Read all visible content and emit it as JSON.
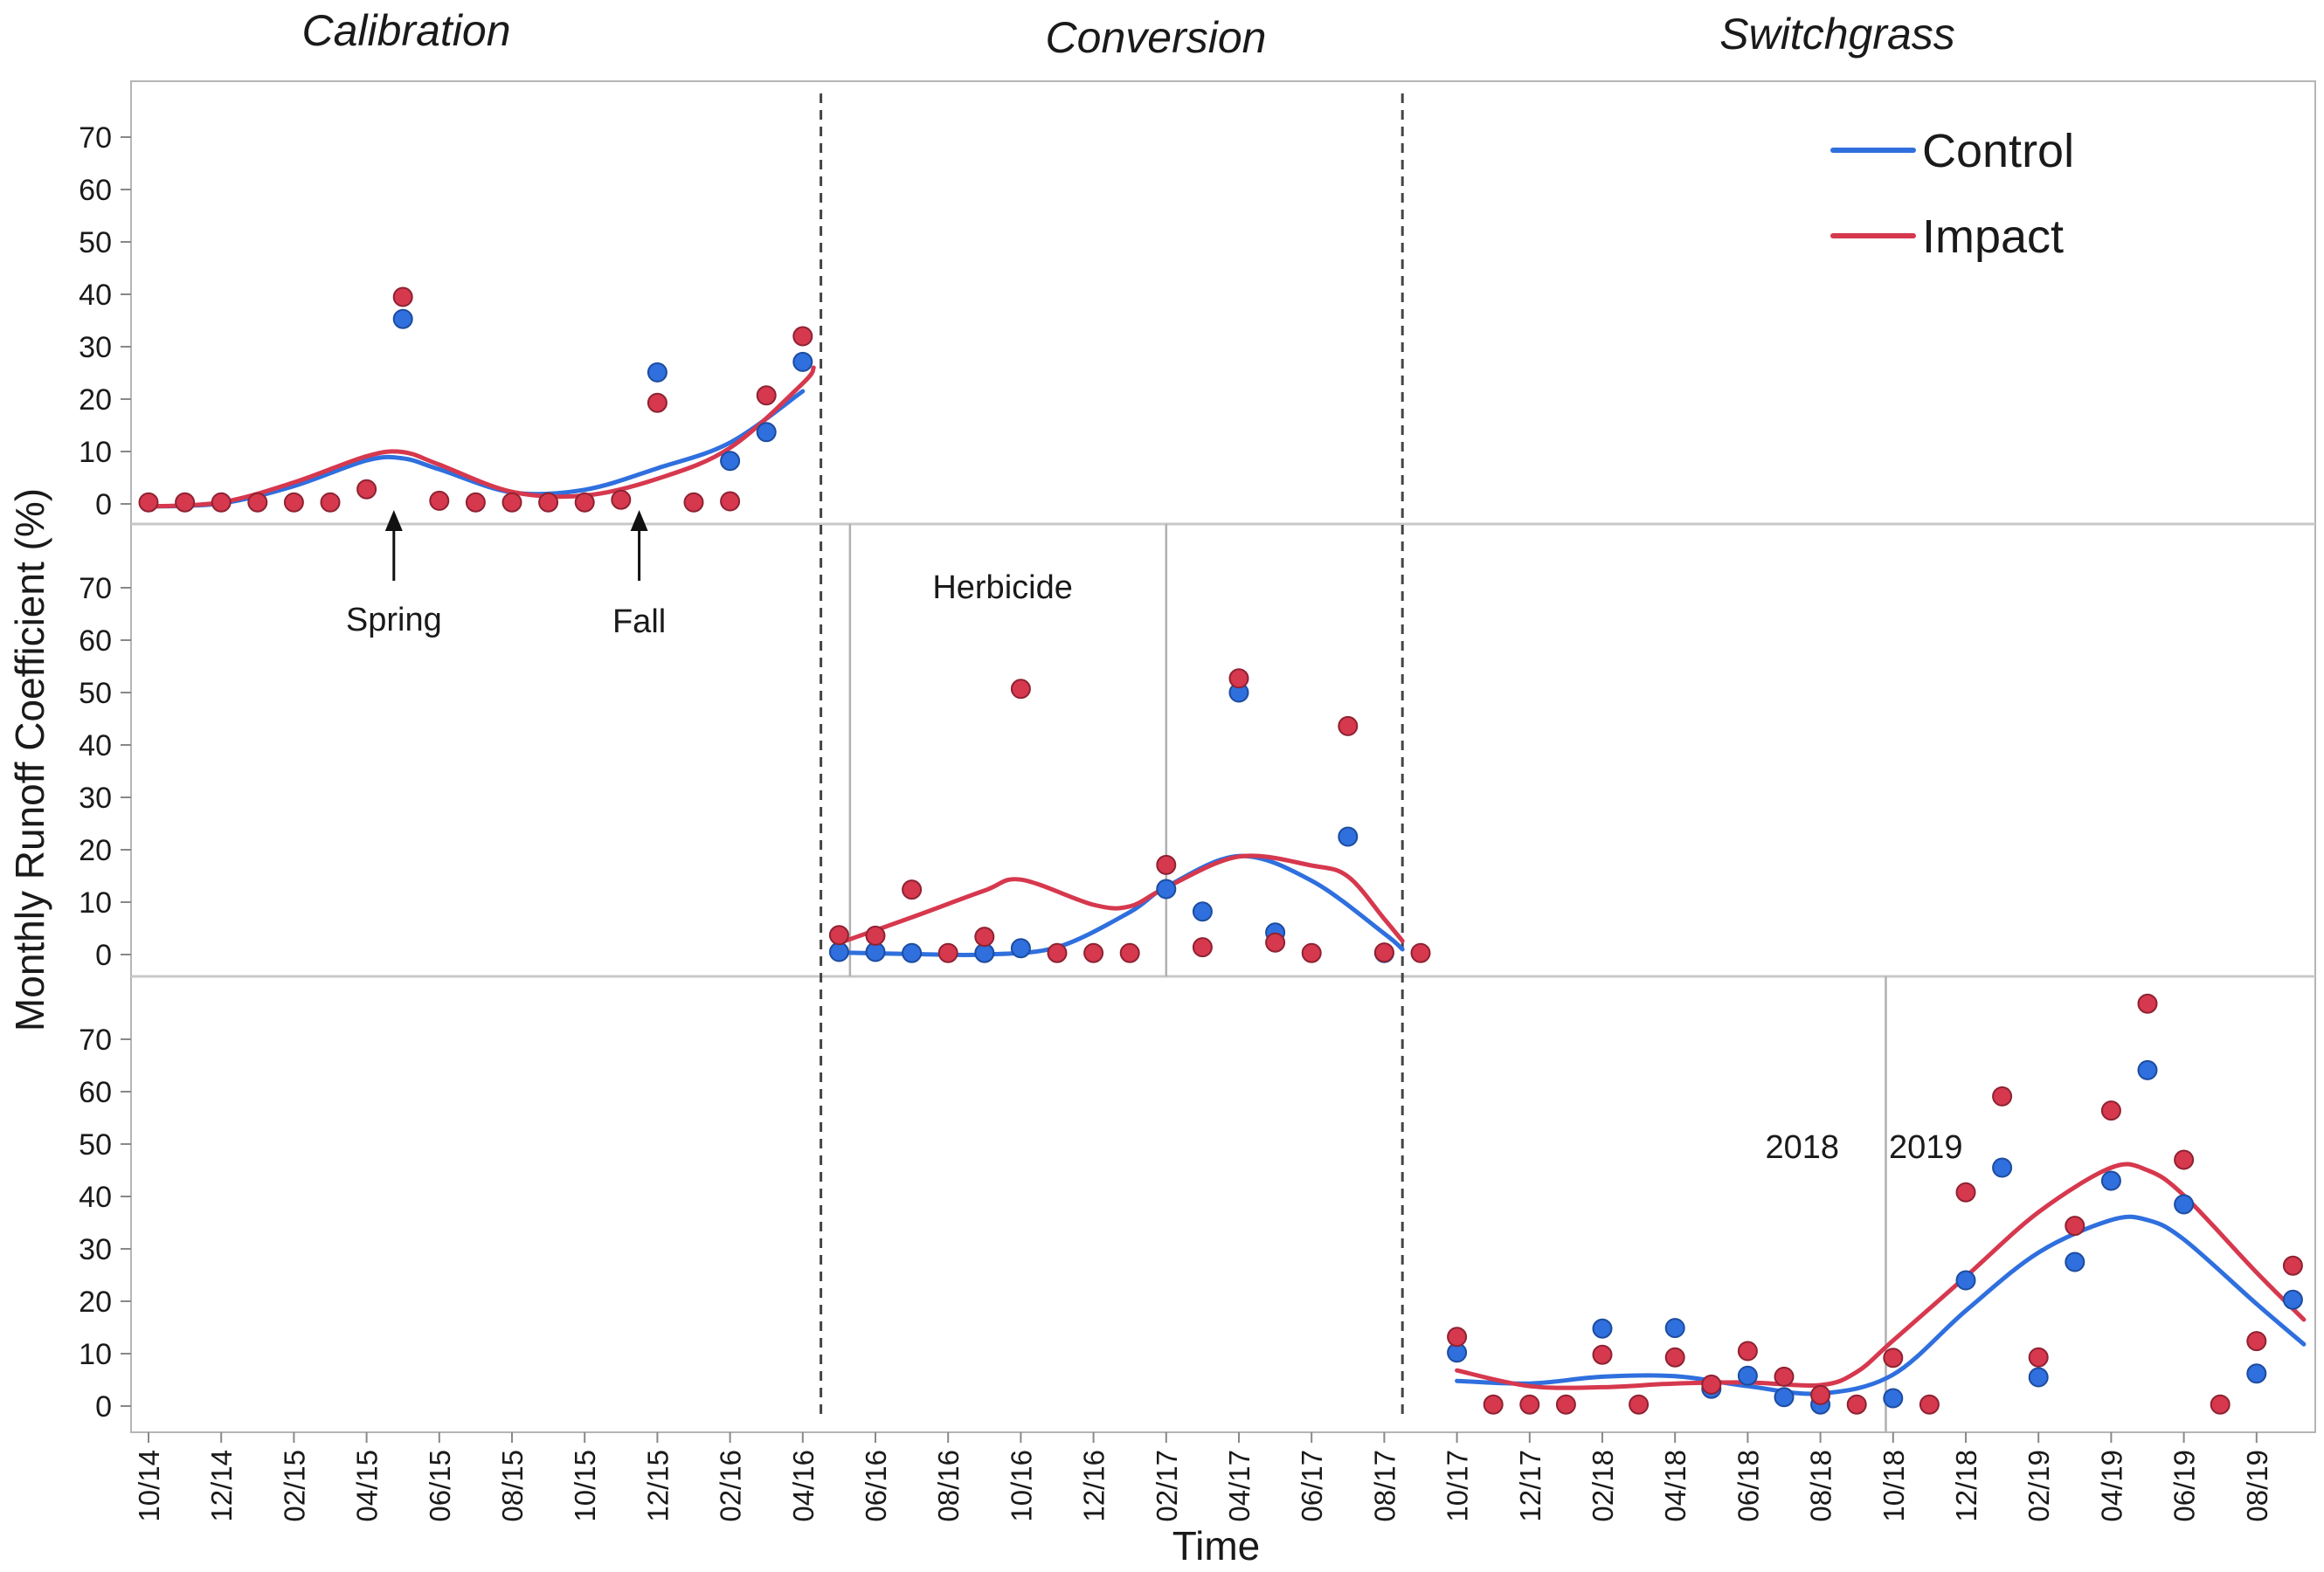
{
  "chart_data": {
    "type": "scatter",
    "title": "",
    "xlabel": "Time",
    "ylabel": "Monthly Runoff Coefficient (%)",
    "ylim": [
      0,
      75
    ],
    "y_ticks": [
      "0",
      "10",
      "20",
      "30",
      "40",
      "50",
      "60",
      "70"
    ],
    "x_ticks": [
      "10/14",
      "12/14",
      "02/15",
      "04/15",
      "06/15",
      "08/15",
      "10/15",
      "12/15",
      "02/16",
      "04/16",
      "06/16",
      "08/16",
      "10/16",
      "12/16",
      "02/17",
      "04/17",
      "06/17",
      "08/17",
      "10/17",
      "12/17",
      "02/18",
      "04/18",
      "06/18",
      "08/18",
      "10/18",
      "12/18",
      "02/19",
      "04/19",
      "06/19",
      "08/19"
    ],
    "x_tick_months": [
      0,
      2,
      4,
      6,
      8,
      10,
      12,
      14,
      16,
      18,
      20,
      22,
      24,
      26,
      28,
      30,
      32,
      34,
      36,
      38,
      40,
      42,
      44,
      46,
      48,
      50,
      52,
      54,
      56,
      58
    ],
    "x_month_origin": "10/14",
    "x_range_months": [
      0,
      59.3
    ],
    "grid": false,
    "legend_position": "top-right",
    "phases": [
      "Calibration",
      "Conversion",
      "Switchgrass"
    ],
    "phase_boundaries": [
      18.5,
      34.5
    ],
    "subperiod_boundaries": [
      {
        "panel": 1,
        "x": 19.3
      },
      {
        "panel": 1,
        "x": 28.0
      },
      {
        "panel": 2,
        "x": 47.8
      }
    ],
    "annotations": [
      {
        "text": "Spring",
        "panel": 0,
        "x": 6.75,
        "arrow": true
      },
      {
        "text": "Fall",
        "panel": 0,
        "x": 13.5,
        "arrow": true
      },
      {
        "text": "Herbicide",
        "panel": 1,
        "x": 23.5
      },
      {
        "text": "2018",
        "panel": 2,
        "x": 45.5
      },
      {
        "text": "2019",
        "panel": 2,
        "x": 48.9
      }
    ],
    "series": [
      {
        "name": "Control",
        "color": "#2f6fde",
        "points": [
          {
            "panel": 0,
            "x": 7,
            "y": 35.3
          },
          {
            "panel": 0,
            "x": 14,
            "y": 25.1
          },
          {
            "panel": 0,
            "x": 16,
            "y": 8.2
          },
          {
            "panel": 0,
            "x": 17,
            "y": 13.7
          },
          {
            "panel": 0,
            "x": 18,
            "y": 27.1
          },
          {
            "panel": 1,
            "x": 19,
            "y": 0.5
          },
          {
            "panel": 1,
            "x": 20,
            "y": 0.5
          },
          {
            "panel": 1,
            "x": 21,
            "y": 0.3
          },
          {
            "panel": 1,
            "x": 23,
            "y": 0.3
          },
          {
            "panel": 1,
            "x": 24,
            "y": 1.2
          },
          {
            "panel": 1,
            "x": 28,
            "y": 12.5
          },
          {
            "panel": 1,
            "x": 29,
            "y": 8.2
          },
          {
            "panel": 1,
            "x": 30,
            "y": 50.0
          },
          {
            "panel": 1,
            "x": 31,
            "y": 4.2
          },
          {
            "panel": 1,
            "x": 33,
            "y": 22.5
          },
          {
            "panel": 1,
            "x": 34,
            "y": 0.3
          },
          {
            "panel": 2,
            "x": 36,
            "y": 10.2
          },
          {
            "panel": 2,
            "x": 40,
            "y": 14.8
          },
          {
            "panel": 2,
            "x": 42,
            "y": 14.9
          },
          {
            "panel": 2,
            "x": 43,
            "y": 3.3
          },
          {
            "panel": 2,
            "x": 44,
            "y": 5.8
          },
          {
            "panel": 2,
            "x": 45,
            "y": 1.7
          },
          {
            "panel": 2,
            "x": 46,
            "y": 0.3
          },
          {
            "panel": 2,
            "x": 48,
            "y": 1.5
          },
          {
            "panel": 2,
            "x": 50,
            "y": 24.0
          },
          {
            "panel": 2,
            "x": 51,
            "y": 45.5
          },
          {
            "panel": 2,
            "x": 52,
            "y": 5.5
          },
          {
            "panel": 2,
            "x": 53,
            "y": 27.5
          },
          {
            "panel": 2,
            "x": 54,
            "y": 43.0
          },
          {
            "panel": 2,
            "x": 55,
            "y": 64.1
          },
          {
            "panel": 2,
            "x": 56,
            "y": 38.5
          },
          {
            "panel": 2,
            "x": 58,
            "y": 6.2
          },
          {
            "panel": 2,
            "x": 59,
            "y": 20.3
          }
        ],
        "trend": [
          {
            "panel": 0,
            "points": [
              [
                0,
                -0.5
              ],
              [
                2,
                0.1
              ],
              [
                4,
                3.4
              ],
              [
                6,
                8.3
              ],
              [
                7,
                8.7
              ],
              [
                8,
                6.6
              ],
              [
                10,
                2.2
              ],
              [
                12,
                2.7
              ],
              [
                14,
                6.8
              ],
              [
                16,
                11.7
              ],
              [
                18,
                21.5
              ]
            ]
          },
          {
            "panel": 1,
            "points": [
              [
                19,
                0.4
              ],
              [
                21,
                0.1
              ],
              [
                23,
                0
              ],
              [
                25,
                1.4
              ],
              [
                27,
                8.1
              ],
              [
                28,
                12.9
              ],
              [
                30,
                18.8
              ],
              [
                32,
                14.1
              ],
              [
                34,
                4.0
              ],
              [
                34.5,
                1.0
              ]
            ]
          },
          {
            "panel": 2,
            "points": [
              [
                36,
                4.8
              ],
              [
                38,
                4.3
              ],
              [
                40,
                5.6
              ],
              [
                42,
                5.7
              ],
              [
                44,
                3.8
              ],
              [
                46,
                2.4
              ],
              [
                48,
                6.0
              ],
              [
                50,
                18.2
              ],
              [
                52,
                29.3
              ],
              [
                54,
                35.5
              ],
              [
                55,
                35.5
              ],
              [
                56,
                31.8
              ],
              [
                58,
                19.5
              ],
              [
                59.3,
                11.8
              ]
            ]
          }
        ]
      },
      {
        "name": "Impact",
        "color": "#d6384e",
        "points": [
          {
            "panel": 0,
            "x": 0,
            "y": 0.3
          },
          {
            "panel": 0,
            "x": 1,
            "y": 0.3
          },
          {
            "panel": 0,
            "x": 2,
            "y": 0.3
          },
          {
            "panel": 0,
            "x": 3,
            "y": 0.3
          },
          {
            "panel": 0,
            "x": 4,
            "y": 0.3
          },
          {
            "panel": 0,
            "x": 5,
            "y": 0.3
          },
          {
            "panel": 0,
            "x": 6,
            "y": 2.8
          },
          {
            "panel": 0,
            "x": 7,
            "y": 39.5
          },
          {
            "panel": 0,
            "x": 8,
            "y": 0.6
          },
          {
            "panel": 0,
            "x": 9,
            "y": 0.3
          },
          {
            "panel": 0,
            "x": 10,
            "y": 0.3
          },
          {
            "panel": 0,
            "x": 11,
            "y": 0.3
          },
          {
            "panel": 0,
            "x": 12,
            "y": 0.3
          },
          {
            "panel": 0,
            "x": 13,
            "y": 0.8
          },
          {
            "panel": 0,
            "x": 14,
            "y": 19.3
          },
          {
            "panel": 0,
            "x": 15,
            "y": 0.3
          },
          {
            "panel": 0,
            "x": 16,
            "y": 0.5
          },
          {
            "panel": 0,
            "x": 17,
            "y": 20.7
          },
          {
            "panel": 0,
            "x": 18,
            "y": 32.0
          },
          {
            "panel": 1,
            "x": 19,
            "y": 3.7
          },
          {
            "panel": 1,
            "x": 20,
            "y": 3.6
          },
          {
            "panel": 1,
            "x": 21,
            "y": 12.4
          },
          {
            "panel": 1,
            "x": 22,
            "y": 0.3
          },
          {
            "panel": 1,
            "x": 23,
            "y": 3.4
          },
          {
            "panel": 1,
            "x": 24,
            "y": 50.7
          },
          {
            "panel": 1,
            "x": 25,
            "y": 0.3
          },
          {
            "panel": 1,
            "x": 26,
            "y": 0.3
          },
          {
            "panel": 1,
            "x": 27,
            "y": 0.3
          },
          {
            "panel": 1,
            "x": 28,
            "y": 17.1
          },
          {
            "panel": 1,
            "x": 29,
            "y": 1.4
          },
          {
            "panel": 1,
            "x": 30,
            "y": 52.7
          },
          {
            "panel": 1,
            "x": 31,
            "y": 2.3
          },
          {
            "panel": 1,
            "x": 32,
            "y": 0.3
          },
          {
            "panel": 1,
            "x": 33,
            "y": 43.6
          },
          {
            "panel": 1,
            "x": 34,
            "y": 0.4
          },
          {
            "panel": 1,
            "x": 35,
            "y": 0.3
          },
          {
            "panel": 2,
            "x": 36,
            "y": 13.2
          },
          {
            "panel": 2,
            "x": 37,
            "y": 0.3
          },
          {
            "panel": 2,
            "x": 38,
            "y": 0.3
          },
          {
            "panel": 2,
            "x": 39,
            "y": 0.3
          },
          {
            "panel": 2,
            "x": 40,
            "y": 9.8
          },
          {
            "panel": 2,
            "x": 41,
            "y": 0.3
          },
          {
            "panel": 2,
            "x": 42,
            "y": 9.3
          },
          {
            "panel": 2,
            "x": 43,
            "y": 4.1
          },
          {
            "panel": 2,
            "x": 44,
            "y": 10.5
          },
          {
            "panel": 2,
            "x": 45,
            "y": 5.6
          },
          {
            "panel": 2,
            "x": 46,
            "y": 2.1
          },
          {
            "panel": 2,
            "x": 47,
            "y": 0.3
          },
          {
            "panel": 2,
            "x": 48,
            "y": 9.2
          },
          {
            "panel": 2,
            "x": 49,
            "y": 0.3
          },
          {
            "panel": 2,
            "x": 50,
            "y": 40.8
          },
          {
            "panel": 2,
            "x": 51,
            "y": 59.1
          },
          {
            "panel": 2,
            "x": 52,
            "y": 9.3
          },
          {
            "panel": 2,
            "x": 53,
            "y": 34.4
          },
          {
            "panel": 2,
            "x": 54,
            "y": 56.4
          },
          {
            "panel": 2,
            "x": 55,
            "y": 76.8
          },
          {
            "panel": 2,
            "x": 56,
            "y": 47.0
          },
          {
            "panel": 2,
            "x": 57,
            "y": 0.3
          },
          {
            "panel": 2,
            "x": 58,
            "y": 12.4
          },
          {
            "panel": 2,
            "x": 59,
            "y": 26.8
          }
        ],
        "trend": [
          {
            "panel": 0,
            "points": [
              [
                0,
                -0.5
              ],
              [
                2,
                0.3
              ],
              [
                4,
                4.1
              ],
              [
                6,
                9.1
              ],
              [
                7,
                9.9
              ],
              [
                8,
                7.5
              ],
              [
                10,
                2.3
              ],
              [
                12,
                1.6
              ],
              [
                14,
                4.8
              ],
              [
                16,
                10.7
              ],
              [
                18,
                23.0
              ],
              [
                18.3,
                26.0
              ]
            ]
          },
          {
            "panel": 1,
            "points": [
              [
                19,
                2.2
              ],
              [
                21,
                7.1
              ],
              [
                23,
                12.2
              ],
              [
                24,
                14.3
              ],
              [
                26,
                9.5
              ],
              [
                27,
                9.2
              ],
              [
                28,
                12.8
              ],
              [
                30,
                18.7
              ],
              [
                32,
                17.0
              ],
              [
                33,
                14.9
              ],
              [
                34,
                6.8
              ],
              [
                34.5,
                2.6
              ]
            ]
          },
          {
            "panel": 2,
            "points": [
              [
                36,
                6.8
              ],
              [
                38,
                3.8
              ],
              [
                40,
                3.6
              ],
              [
                42,
                4.3
              ],
              [
                44,
                4.5
              ],
              [
                46,
                4.0
              ],
              [
                47,
                6.5
              ],
              [
                48,
                12.5
              ],
              [
                50,
                24.7
              ],
              [
                52,
                37.0
              ],
              [
                54,
                45.5
              ],
              [
                55,
                45.0
              ],
              [
                56,
                40.2
              ],
              [
                58,
                25.5
              ],
              [
                59.3,
                16.5
              ]
            ]
          }
        ]
      }
    ]
  }
}
